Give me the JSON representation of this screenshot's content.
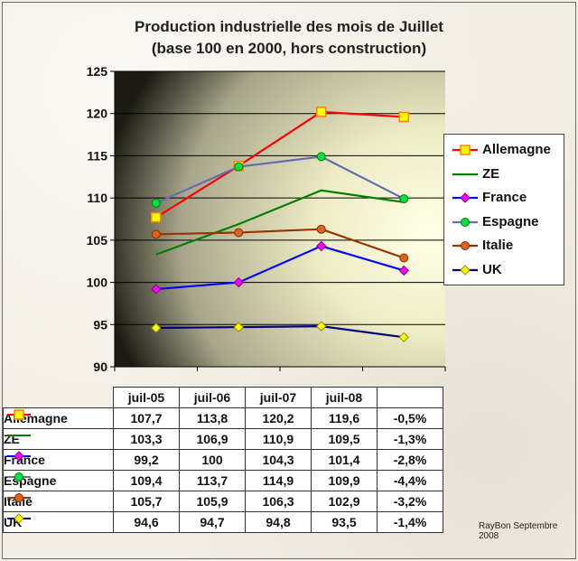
{
  "title_line1": "Production industrielle des mois de Juillet",
  "title_line2": "(base 100 en 2000, hors construction)",
  "credit": "RayBon Septembre 2008",
  "chart_data": {
    "type": "line",
    "categories": [
      "juil-05",
      "juil-06",
      "juil-07",
      "juil-08"
    ],
    "ylim": [
      90,
      125
    ],
    "yticks": [
      90,
      95,
      100,
      105,
      110,
      115,
      120,
      125
    ],
    "grid": true,
    "legend_position": "right",
    "series": [
      {
        "name": "Allemagne",
        "values": [
          107.7,
          113.8,
          120.2,
          119.6
        ],
        "labels": [
          "107,7",
          "113,8",
          "120,2",
          "119,6"
        ],
        "change": "-0,5%",
        "color": "#ff0000",
        "marker": "square",
        "marker_color": "#ffff00",
        "marker_stroke": "#ff8000"
      },
      {
        "name": "ZE",
        "values": [
          103.3,
          106.9,
          110.9,
          109.5
        ],
        "labels": [
          "103,3",
          "106,9",
          "110,9",
          "109,5"
        ],
        "change": "-1,3%",
        "color": "#008000",
        "marker": "none",
        "marker_color": "#008000",
        "marker_stroke": "#008000"
      },
      {
        "name": "France",
        "values": [
          99.2,
          100,
          104.3,
          101.4
        ],
        "labels": [
          "99,2",
          "100",
          "104,3",
          "101,4"
        ],
        "change": "-2,8%",
        "color": "#0000ff",
        "marker": "diamond",
        "marker_color": "#ff00ff",
        "marker_stroke": "#800080"
      },
      {
        "name": "Espagne",
        "values": [
          109.4,
          113.7,
          114.9,
          109.9
        ],
        "labels": [
          "109,4",
          "113,7",
          "114,9",
          "109,9"
        ],
        "change": "-4,4%",
        "color": "#6a6ab0",
        "marker": "circle",
        "marker_color": "#00e040",
        "marker_stroke": "#008000"
      },
      {
        "name": "Italie",
        "values": [
          105.7,
          105.9,
          106.3,
          102.9
        ],
        "labels": [
          "105,7",
          "105,9",
          "106,3",
          "102,9"
        ],
        "change": "-3,2%",
        "color": "#993300",
        "marker": "circle",
        "marker_color": "#e06020",
        "marker_stroke": "#803000"
      },
      {
        "name": "UK",
        "values": [
          94.6,
          94.7,
          94.8,
          93.5
        ],
        "labels": [
          "94,6",
          "94,7",
          "94,8",
          "93,5"
        ],
        "change": "-1,4%",
        "color": "#000080",
        "marker": "diamond",
        "marker_color": "#ffff00",
        "marker_stroke": "#909000"
      }
    ]
  }
}
